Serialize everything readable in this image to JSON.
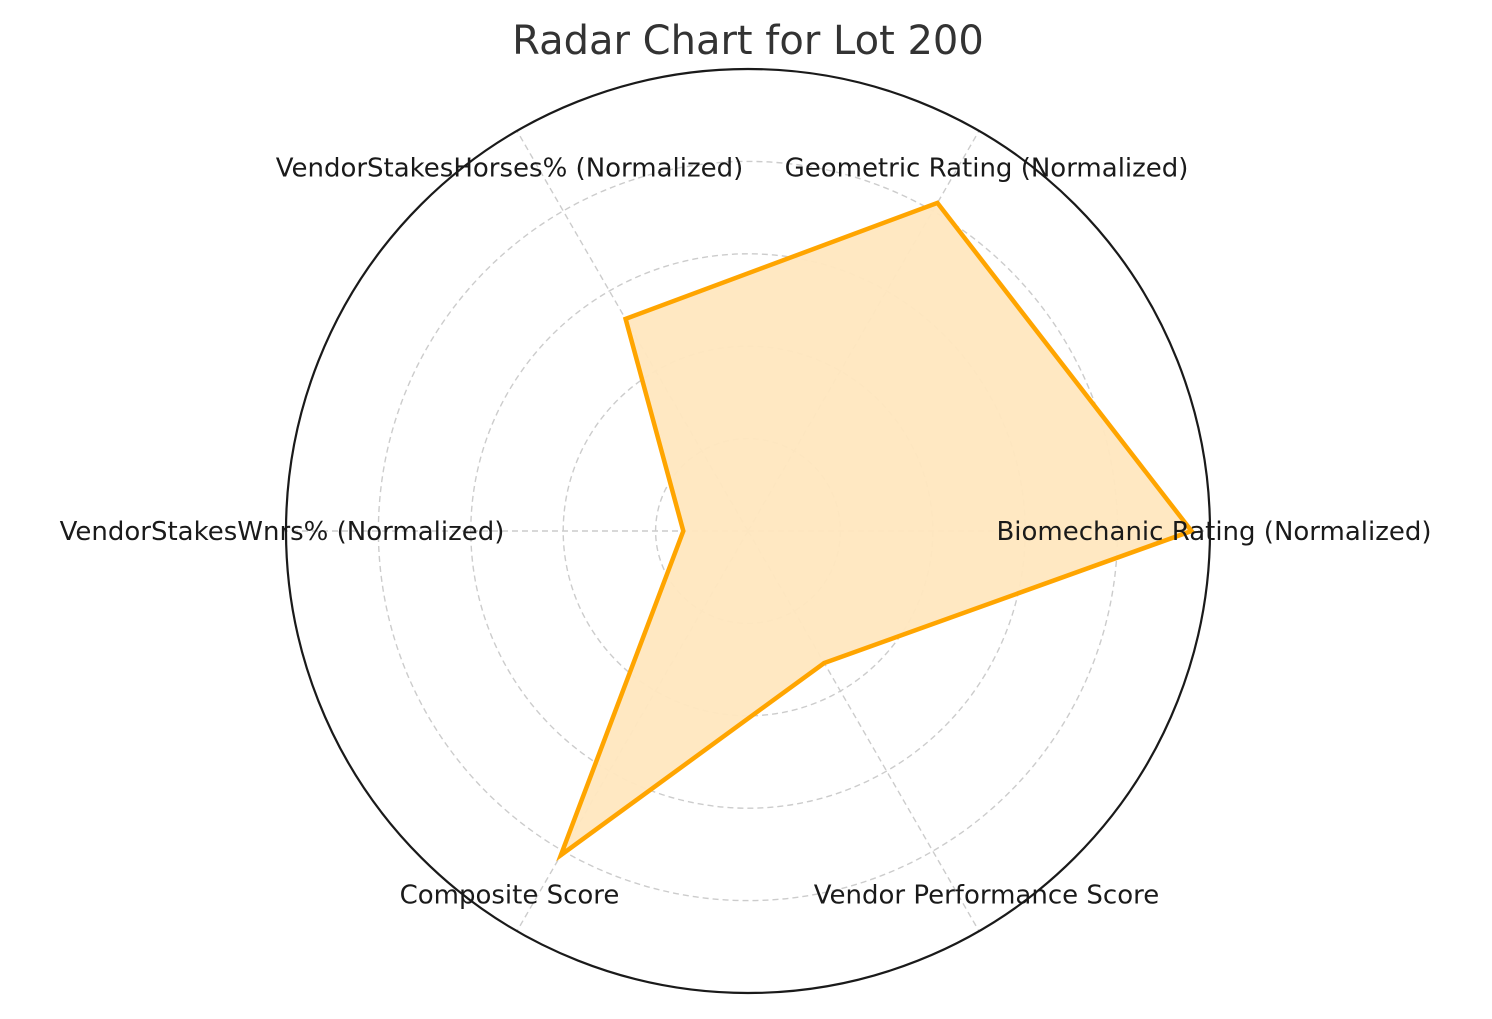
{
  "chart_data": {
    "type": "radar",
    "title": "Radar Chart for Lot 200",
    "axes": [
      "Biomechanic Rating (Normalized)",
      "Geometric Rating (Normalized)",
      "VendorStakesHorses% (Normalized)",
      "VendorStakesWnrs% (Normalized)",
      "Composite Score",
      "Vendor Performance Score"
    ],
    "series": [
      {
        "values": [
          0.96,
          0.82,
          0.53,
          0.14,
          0.81,
          0.33
        ]
      }
    ],
    "rlim": [
      0,
      1
    ],
    "rgrid": [
      0.2,
      0.4,
      0.6,
      0.8,
      1.0
    ],
    "grid": true,
    "colors": {
      "line": "#FFA500",
      "fill": "#FFE7BF",
      "grid": "#cccccc",
      "frame": "#1a1a1a"
    }
  }
}
